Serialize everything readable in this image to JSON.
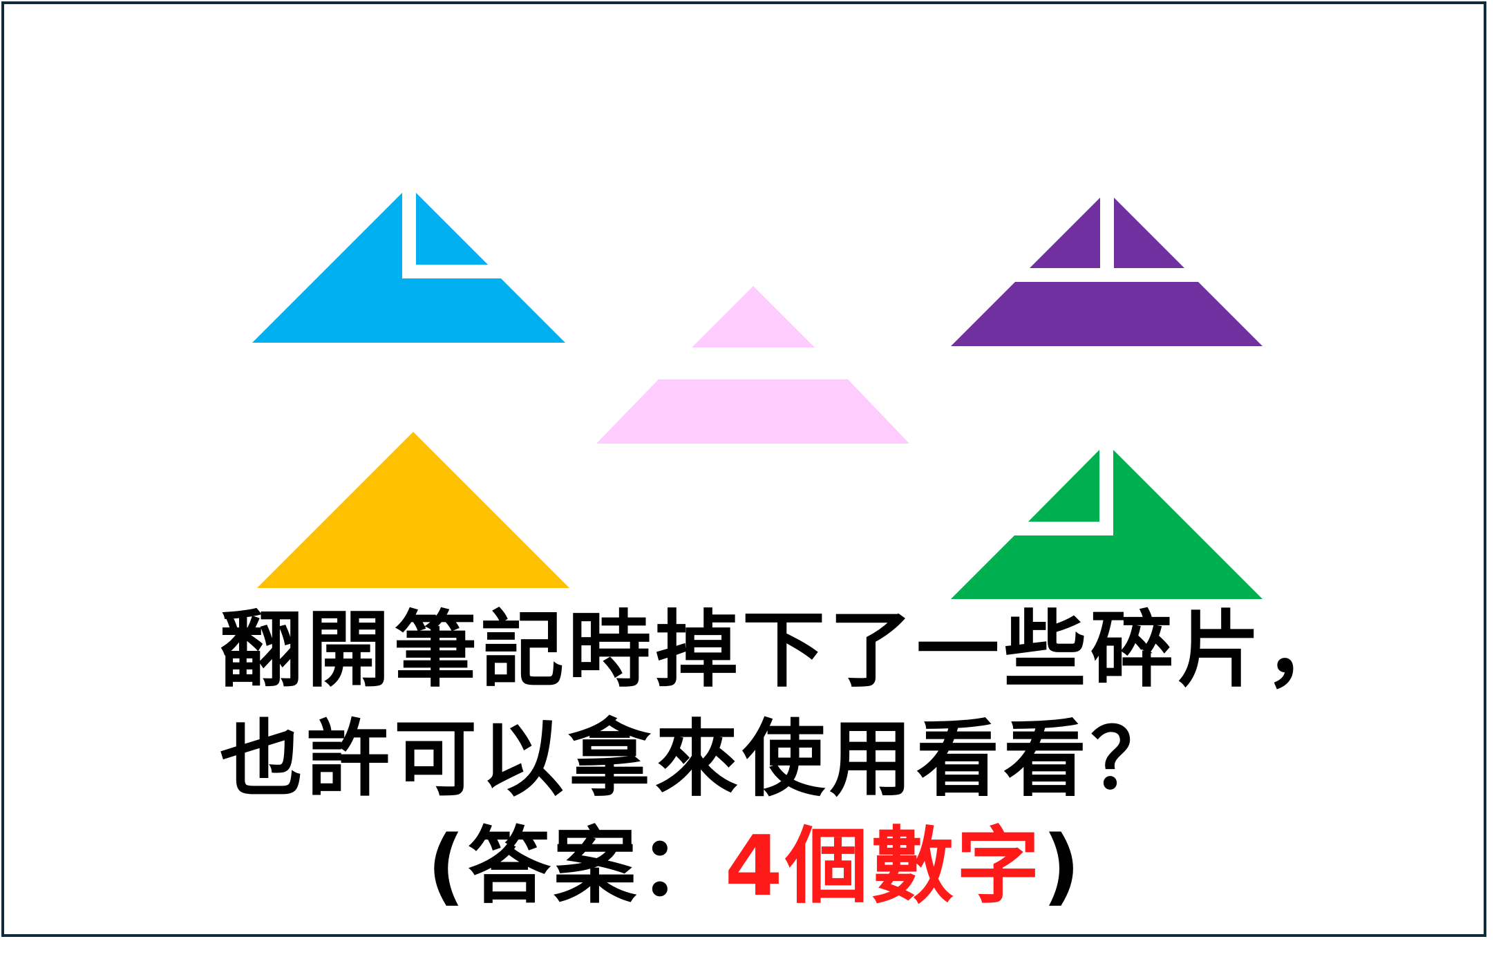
{
  "prompt": {
    "line1": "翻開筆記時掉下了一些碎片，",
    "line2": "也許可以拿來使用看看？",
    "answer_open": "(答案：",
    "answer_value": "4個數字",
    "answer_close": ")"
  },
  "pieces": [
    {
      "name": "blue-triangle-piece",
      "color": "#00b0f0"
    },
    {
      "name": "pink-triangle-piece",
      "color": "#ffccff"
    },
    {
      "name": "purple-triangle-piece",
      "color": "#7030a0"
    },
    {
      "name": "yellow-triangle-piece",
      "color": "#ffc000"
    },
    {
      "name": "green-triangle-piece",
      "color": "#00b050"
    }
  ],
  "colors": {
    "frame": "#0f2a38",
    "text": "#000000",
    "answer_highlight": "#ff1a1a"
  }
}
